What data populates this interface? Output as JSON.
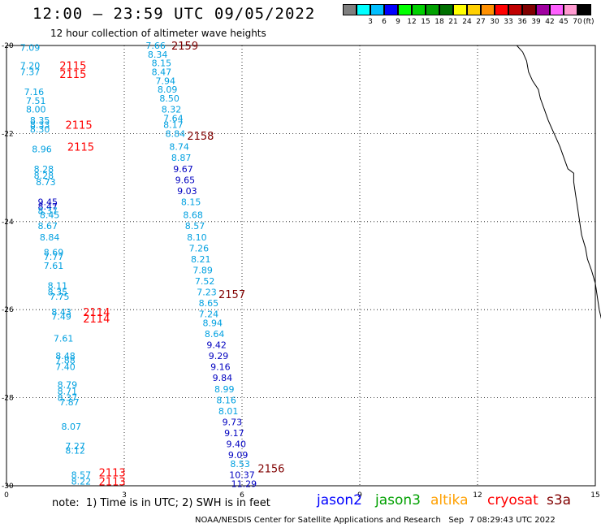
{
  "header": {
    "title": "12:00 – 23:59 UTC 09/05/2022",
    "subtitle": "12 hour collection of altimeter wave heights"
  },
  "legend": {
    "unit": "(ft)",
    "swatches": [
      {
        "color": "#7f7f7f",
        "label": ""
      },
      {
        "color": "#00ffff",
        "label": "3"
      },
      {
        "color": "#00bfff",
        "label": "6"
      },
      {
        "color": "#0000ff",
        "label": "9"
      },
      {
        "color": "#00ff00",
        "label": "12"
      },
      {
        "color": "#00d000",
        "label": "15"
      },
      {
        "color": "#00a000",
        "label": "18"
      },
      {
        "color": "#007000",
        "label": "21"
      },
      {
        "color": "#ffff00",
        "label": "24"
      },
      {
        "color": "#ffd000",
        "label": "27"
      },
      {
        "color": "#ff9000",
        "label": "30"
      },
      {
        "color": "#ff0000",
        "label": "33"
      },
      {
        "color": "#c00000",
        "label": "36"
      },
      {
        "color": "#800000",
        "label": "39"
      },
      {
        "color": "#a000a0",
        "label": "42"
      },
      {
        "color": "#ff60ff",
        "label": "45"
      },
      {
        "color": "#ff9ad0",
        "label": "70"
      },
      {
        "color": "#000000",
        "label": ""
      }
    ]
  },
  "axes": {
    "x_ticks": [
      "0",
      "3",
      "6",
      "9",
      "12",
      "15"
    ],
    "y_ticks": [
      "-20",
      "-22",
      "-24",
      "-26",
      "-28",
      "-30"
    ]
  },
  "colors": {
    "cyan": "#00a0e0",
    "blue": "#0000c0",
    "red": "#ff0000",
    "darkred": "#800000"
  },
  "tracks": [
    {
      "label": "2159",
      "lon": 4.2,
      "lat": -20.0,
      "color": "darkred"
    },
    {
      "label": "2158",
      "lon": 4.6,
      "lat": -22.05,
      "color": "darkred"
    },
    {
      "label": "2157",
      "lon": 5.4,
      "lat": -25.65,
      "color": "darkred"
    },
    {
      "label": "2156",
      "lon": 6.4,
      "lat": -29.6,
      "color": "darkred"
    },
    {
      "label": "2115",
      "lon": 1.35,
      "lat": -20.45,
      "color": "red"
    },
    {
      "label": "2115",
      "lon": 1.35,
      "lat": -20.65,
      "color": "red"
    },
    {
      "label": "2115",
      "lon": 1.5,
      "lat": -21.8,
      "color": "red"
    },
    {
      "label": "2115",
      "lon": 1.55,
      "lat": -22.3,
      "color": "red"
    },
    {
      "label": "2114",
      "lon": 1.95,
      "lat": -26.05,
      "color": "red"
    },
    {
      "label": "2114",
      "lon": 1.95,
      "lat": -26.2,
      "color": "red"
    },
    {
      "label": "2113",
      "lon": 2.35,
      "lat": -29.7,
      "color": "red"
    },
    {
      "label": "2113",
      "lon": 2.35,
      "lat": -29.9,
      "color": "red"
    }
  ],
  "values": [
    {
      "v": "7.09",
      "lon": 0.6,
      "lat": -20.05,
      "c": "cyan"
    },
    {
      "v": "7.20",
      "lon": 0.6,
      "lat": -20.45,
      "c": "cyan"
    },
    {
      "v": "7.37",
      "lon": 0.6,
      "lat": -20.6,
      "c": "cyan"
    },
    {
      "v": "7.16",
      "lon": 0.7,
      "lat": -21.05,
      "c": "cyan"
    },
    {
      "v": "7.51",
      "lon": 0.75,
      "lat": -21.25,
      "c": "cyan"
    },
    {
      "v": "8.00",
      "lon": 0.75,
      "lat": -21.45,
      "c": "cyan"
    },
    {
      "v": "8.35",
      "lon": 0.85,
      "lat": -21.7,
      "c": "cyan"
    },
    {
      "v": "8.33",
      "lon": 0.85,
      "lat": -21.8,
      "c": "cyan"
    },
    {
      "v": "8.30",
      "lon": 0.85,
      "lat": -21.9,
      "c": "cyan"
    },
    {
      "v": "8.96",
      "lon": 0.9,
      "lat": -22.35,
      "c": "cyan"
    },
    {
      "v": "8.28",
      "lon": 0.95,
      "lat": -22.8,
      "c": "cyan"
    },
    {
      "v": "8.28",
      "lon": 0.95,
      "lat": -22.95,
      "c": "cyan"
    },
    {
      "v": "8.73",
      "lon": 1.0,
      "lat": -23.1,
      "c": "cyan"
    },
    {
      "v": "9.45",
      "lon": 1.05,
      "lat": -23.55,
      "c": "blue"
    },
    {
      "v": "8.47",
      "lon": 1.05,
      "lat": -23.65,
      "c": "blue"
    },
    {
      "v": "8.37",
      "lon": 1.05,
      "lat": -23.75,
      "c": "cyan"
    },
    {
      "v": "8.45",
      "lon": 1.1,
      "lat": -23.85,
      "c": "cyan"
    },
    {
      "v": "8.67",
      "lon": 1.05,
      "lat": -24.1,
      "c": "cyan"
    },
    {
      "v": "8.84",
      "lon": 1.1,
      "lat": -24.35,
      "c": "cyan"
    },
    {
      "v": "8.69",
      "lon": 1.2,
      "lat": -24.7,
      "c": "cyan"
    },
    {
      "v": "7.77",
      "lon": 1.2,
      "lat": -24.8,
      "c": "cyan"
    },
    {
      "v": "7.61",
      "lon": 1.2,
      "lat": -25.0,
      "c": "cyan"
    },
    {
      "v": "8.11",
      "lon": 1.3,
      "lat": -25.45,
      "c": "cyan"
    },
    {
      "v": "8.35",
      "lon": 1.3,
      "lat": -25.6,
      "c": "cyan"
    },
    {
      "v": "7.75",
      "lon": 1.35,
      "lat": -25.7,
      "c": "cyan"
    },
    {
      "v": "8.43",
      "lon": 1.4,
      "lat": -26.05,
      "c": "cyan"
    },
    {
      "v": "7.49",
      "lon": 1.4,
      "lat": -26.15,
      "c": "cyan"
    },
    {
      "v": "7.61",
      "lon": 1.45,
      "lat": -26.65,
      "c": "cyan"
    },
    {
      "v": "8.48",
      "lon": 1.5,
      "lat": -27.05,
      "c": "cyan"
    },
    {
      "v": "7.88",
      "lon": 1.5,
      "lat": -27.15,
      "c": "cyan"
    },
    {
      "v": "7.40",
      "lon": 1.5,
      "lat": -27.3,
      "c": "cyan"
    },
    {
      "v": "8.79",
      "lon": 1.55,
      "lat": -27.7,
      "c": "cyan"
    },
    {
      "v": "8.71",
      "lon": 1.55,
      "lat": -27.85,
      "c": "cyan"
    },
    {
      "v": "8.37",
      "lon": 1.55,
      "lat": -28.0,
      "c": "cyan"
    },
    {
      "v": "7.87",
      "lon": 1.6,
      "lat": -28.1,
      "c": "cyan"
    },
    {
      "v": "8.07",
      "lon": 1.65,
      "lat": -28.65,
      "c": "cyan"
    },
    {
      "v": "7.27",
      "lon": 1.75,
      "lat": -29.1,
      "c": "cyan"
    },
    {
      "v": "8.12",
      "lon": 1.75,
      "lat": -29.2,
      "c": "cyan"
    },
    {
      "v": "8.57",
      "lon": 1.9,
      "lat": -29.75,
      "c": "cyan"
    },
    {
      "v": "8.22",
      "lon": 1.9,
      "lat": -29.9,
      "c": "cyan"
    },
    {
      "v": "7.66",
      "lon": 3.8,
      "lat": -20.0,
      "c": "cyan"
    },
    {
      "v": "8.34",
      "lon": 3.85,
      "lat": -20.2,
      "c": "cyan"
    },
    {
      "v": "8.15",
      "lon": 3.95,
      "lat": -20.4,
      "c": "cyan"
    },
    {
      "v": "8.47",
      "lon": 3.95,
      "lat": -20.6,
      "c": "cyan"
    },
    {
      "v": "7.94",
      "lon": 4.05,
      "lat": -20.8,
      "c": "cyan"
    },
    {
      "v": "8.09",
      "lon": 4.1,
      "lat": -21.0,
      "c": "cyan"
    },
    {
      "v": "8.50",
      "lon": 4.15,
      "lat": -21.2,
      "c": "cyan"
    },
    {
      "v": "8.32",
      "lon": 4.2,
      "lat": -21.45,
      "c": "cyan"
    },
    {
      "v": "7.64",
      "lon": 4.25,
      "lat": -21.65,
      "c": "cyan"
    },
    {
      "v": "8.17",
      "lon": 4.25,
      "lat": -21.8,
      "c": "cyan"
    },
    {
      "v": "8.84",
      "lon": 4.3,
      "lat": -22.0,
      "c": "cyan"
    },
    {
      "v": "8.74",
      "lon": 4.4,
      "lat": -22.3,
      "c": "cyan"
    },
    {
      "v": "8.87",
      "lon": 4.45,
      "lat": -22.55,
      "c": "cyan"
    },
    {
      "v": "9.67",
      "lon": 4.5,
      "lat": -22.8,
      "c": "blue"
    },
    {
      "v": "9.65",
      "lon": 4.55,
      "lat": -23.05,
      "c": "blue"
    },
    {
      "v": "9.03",
      "lon": 4.6,
      "lat": -23.3,
      "c": "blue"
    },
    {
      "v": "8.15",
      "lon": 4.7,
      "lat": -23.55,
      "c": "cyan"
    },
    {
      "v": "8.68",
      "lon": 4.75,
      "lat": -23.85,
      "c": "cyan"
    },
    {
      "v": "8.57",
      "lon": 4.8,
      "lat": -24.1,
      "c": "cyan"
    },
    {
      "v": "8.10",
      "lon": 4.85,
      "lat": -24.35,
      "c": "cyan"
    },
    {
      "v": "7.26",
      "lon": 4.9,
      "lat": -24.6,
      "c": "cyan"
    },
    {
      "v": "8.21",
      "lon": 4.95,
      "lat": -24.85,
      "c": "cyan"
    },
    {
      "v": "7.89",
      "lon": 5.0,
      "lat": -25.1,
      "c": "cyan"
    },
    {
      "v": "7.52",
      "lon": 5.05,
      "lat": -25.35,
      "c": "cyan"
    },
    {
      "v": "7.23",
      "lon": 5.1,
      "lat": -25.6,
      "c": "cyan"
    },
    {
      "v": "8.65",
      "lon": 5.15,
      "lat": -25.85,
      "c": "cyan"
    },
    {
      "v": "7.24",
      "lon": 5.15,
      "lat": -26.1,
      "c": "cyan"
    },
    {
      "v": "8.94",
      "lon": 5.25,
      "lat": -26.3,
      "c": "cyan"
    },
    {
      "v": "8.64",
      "lon": 5.3,
      "lat": -26.55,
      "c": "cyan"
    },
    {
      "v": "9.42",
      "lon": 5.35,
      "lat": -26.8,
      "c": "blue"
    },
    {
      "v": "9.29",
      "lon": 5.4,
      "lat": -27.05,
      "c": "blue"
    },
    {
      "v": "9.16",
      "lon": 5.45,
      "lat": -27.3,
      "c": "blue"
    },
    {
      "v": "9.84",
      "lon": 5.5,
      "lat": -27.55,
      "c": "blue"
    },
    {
      "v": "8.99",
      "lon": 5.55,
      "lat": -27.8,
      "c": "cyan"
    },
    {
      "v": "8.16",
      "lon": 5.6,
      "lat": -28.05,
      "c": "cyan"
    },
    {
      "v": "8.01",
      "lon": 5.65,
      "lat": -28.3,
      "c": "cyan"
    },
    {
      "v": "9.73",
      "lon": 5.75,
      "lat": -28.55,
      "c": "blue"
    },
    {
      "v": "9.17",
      "lon": 5.8,
      "lat": -28.8,
      "c": "blue"
    },
    {
      "v": "9.40",
      "lon": 5.85,
      "lat": -29.05,
      "c": "blue"
    },
    {
      "v": "9.09",
      "lon": 5.9,
      "lat": -29.3,
      "c": "blue"
    },
    {
      "v": "8.53",
      "lon": 5.95,
      "lat": -29.5,
      "c": "cyan"
    },
    {
      "v": "10.37",
      "lon": 6.0,
      "lat": -29.75,
      "c": "blue"
    },
    {
      "v": "11.29",
      "lon": 6.05,
      "lat": -29.95,
      "c": "blue"
    }
  ],
  "coastline": [
    [
      13.0,
      -20.0
    ],
    [
      13.15,
      -20.15
    ],
    [
      13.25,
      -20.35
    ],
    [
      13.3,
      -20.6
    ],
    [
      13.4,
      -20.8
    ],
    [
      13.55,
      -21.0
    ],
    [
      13.6,
      -21.2
    ],
    [
      13.7,
      -21.45
    ],
    [
      13.8,
      -21.7
    ],
    [
      13.9,
      -21.9
    ],
    [
      14.0,
      -22.1
    ],
    [
      14.1,
      -22.3
    ],
    [
      14.2,
      -22.55
    ],
    [
      14.3,
      -22.8
    ],
    [
      14.45,
      -22.9
    ],
    [
      14.45,
      -23.1
    ],
    [
      14.5,
      -23.4
    ],
    [
      14.55,
      -23.7
    ],
    [
      14.6,
      -24.0
    ],
    [
      14.65,
      -24.3
    ],
    [
      14.75,
      -24.6
    ],
    [
      14.8,
      -24.85
    ],
    [
      14.9,
      -25.1
    ],
    [
      15.0,
      -25.4
    ],
    [
      15.05,
      -25.7
    ],
    [
      15.1,
      -26.0
    ],
    [
      15.15,
      -26.2
    ],
    [
      15.2,
      -26.35
    ],
    [
      15.2,
      -26.5
    ]
  ],
  "footer": {
    "note": "note:  1) Time is in UTC; 2) SWH is in feet",
    "satellites": [
      {
        "name": "jason2",
        "color": "#0000ff"
      },
      {
        "name": "jason3",
        "color": "#00a000"
      },
      {
        "name": "altika",
        "color": "#ffa000"
      },
      {
        "name": "cryosat",
        "color": "#ff0000"
      },
      {
        "name": "s3a",
        "color": "#800000"
      }
    ],
    "credit": "NOAA/NESDIS Center for Satellite Applications and Research",
    "timestamp": "Sep  7 08:29:43 UTC 2022"
  }
}
